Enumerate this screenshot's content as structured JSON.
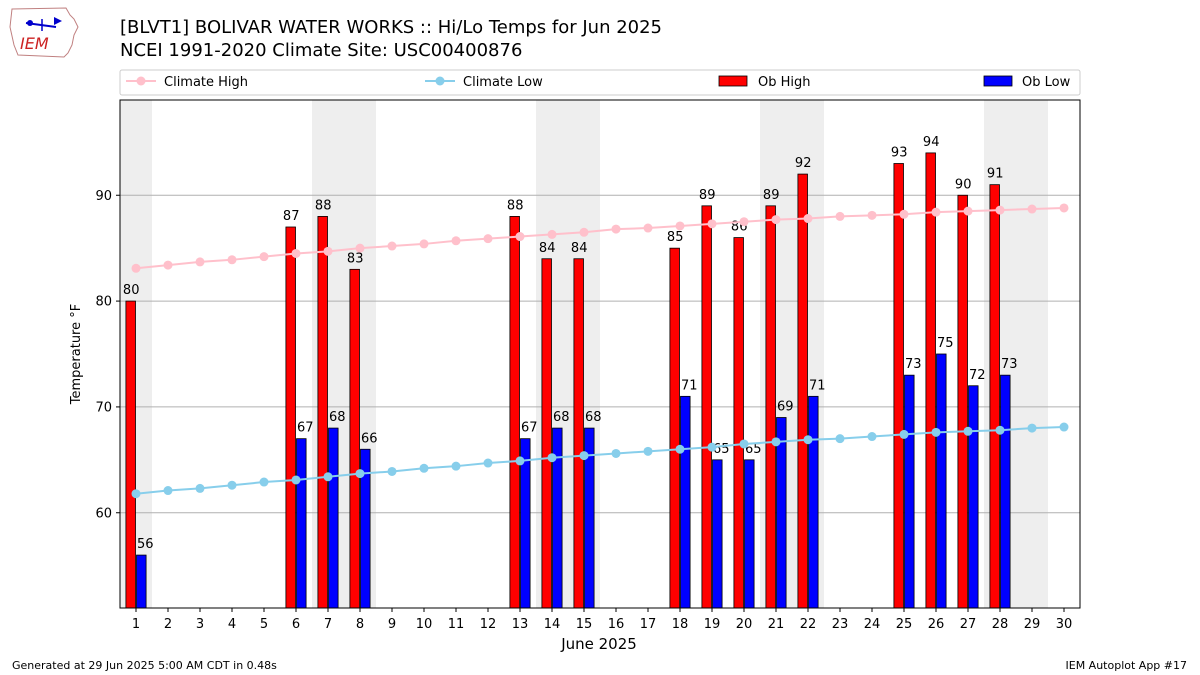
{
  "header": {
    "title_line1": "[BLVT1] BOLIVAR WATER WORKS :: Hi/Lo Temps for Jun 2025",
    "title_line2": "NCEI 1991-2020 Climate Site: USC00400876",
    "logo_text": "IEM"
  },
  "footer": {
    "left": "Generated at 29 Jun 2025 5:00 AM CDT in 0.48s",
    "right": "IEM Autoplot App #17"
  },
  "colors": {
    "climate_high": "#ffc0cb",
    "climate_low": "#87ceeb",
    "ob_high": "#ff0000",
    "ob_low": "#0000ff",
    "weekend_shade": "#eeeeee"
  },
  "chart_data": {
    "type": "bar",
    "title": "[BLVT1] BOLIVAR WATER WORKS :: Hi/Lo Temps for Jun 2025",
    "subtitle": "NCEI 1991-2020 Climate Site: USC00400876",
    "xlabel": "June 2025",
    "ylabel": "Temperature °F",
    "ylim": [
      51,
      99
    ],
    "yticks": [
      60,
      70,
      80,
      90
    ],
    "grid": true,
    "legend_position": "top",
    "categories": [
      "1",
      "2",
      "3",
      "4",
      "5",
      "6",
      "7",
      "8",
      "9",
      "10",
      "11",
      "12",
      "13",
      "14",
      "15",
      "16",
      "17",
      "18",
      "19",
      "20",
      "21",
      "22",
      "23",
      "24",
      "25",
      "26",
      "27",
      "28",
      "29",
      "30"
    ],
    "shaded_days": [
      1,
      7,
      8,
      14,
      15,
      21,
      22,
      28,
      29
    ],
    "series": [
      {
        "name": "Climate High",
        "kind": "line",
        "values": [
          83.1,
          83.4,
          83.7,
          83.9,
          84.2,
          84.5,
          84.7,
          85.0,
          85.2,
          85.4,
          85.7,
          85.9,
          86.1,
          86.3,
          86.5,
          86.8,
          86.9,
          87.1,
          87.3,
          87.5,
          87.7,
          87.8,
          88.0,
          88.1,
          88.2,
          88.4,
          88.5,
          88.6,
          88.7,
          88.8
        ]
      },
      {
        "name": "Climate Low",
        "kind": "line",
        "values": [
          61.8,
          62.1,
          62.3,
          62.6,
          62.9,
          63.1,
          63.4,
          63.7,
          63.9,
          64.2,
          64.4,
          64.7,
          64.9,
          65.2,
          65.4,
          65.6,
          65.8,
          66.0,
          66.2,
          66.5,
          66.7,
          66.9,
          67.0,
          67.2,
          67.4,
          67.6,
          67.7,
          67.8,
          68.0,
          68.1
        ]
      },
      {
        "name": "Ob High",
        "kind": "bar",
        "values": [
          80,
          null,
          null,
          null,
          null,
          87,
          88,
          83,
          null,
          null,
          null,
          null,
          88,
          84,
          84,
          null,
          null,
          85,
          89,
          86,
          89,
          92,
          null,
          null,
          93,
          94,
          90,
          91,
          null,
          null
        ]
      },
      {
        "name": "Ob Low",
        "kind": "bar",
        "values": [
          56,
          null,
          null,
          null,
          null,
          67,
          68,
          66,
          null,
          null,
          null,
          null,
          67,
          68,
          68,
          null,
          null,
          71,
          65,
          65,
          69,
          71,
          null,
          null,
          73,
          75,
          72,
          73,
          null,
          null
        ]
      }
    ]
  }
}
